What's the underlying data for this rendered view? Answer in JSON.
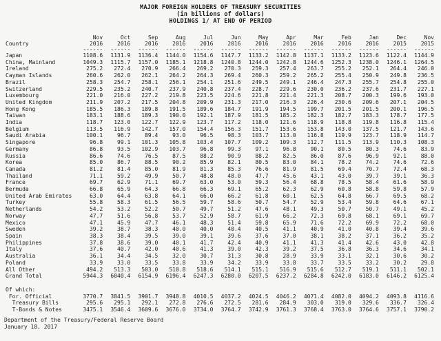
{
  "header": {
    "line1": "MAJOR FOREIGN HOLDERS OF TREASURY SECURITIES",
    "line2": "(in billions of dollars)",
    "line3": "HOLDINGS 1/ AT END OF PERIOD"
  },
  "table": {
    "country_header": "Country",
    "underline": "------",
    "columns": [
      {
        "month": "Nov",
        "year": "2016"
      },
      {
        "month": "Oct",
        "year": "2016"
      },
      {
        "month": "Sep",
        "year": "2016"
      },
      {
        "month": "Aug",
        "year": "2016"
      },
      {
        "month": "Jul",
        "year": "2016"
      },
      {
        "month": "Jun",
        "year": "2016"
      },
      {
        "month": "May",
        "year": "2016"
      },
      {
        "month": "Apr",
        "year": "2016"
      },
      {
        "month": "Mar",
        "year": "2016"
      },
      {
        "month": "Feb",
        "year": "2016"
      },
      {
        "month": "Jan",
        "year": "2016"
      },
      {
        "month": "Dec",
        "year": "2015"
      },
      {
        "month": "Nov",
        "year": "2015"
      }
    ],
    "rows": [
      {
        "name": "Japan",
        "values": [
          "1108.6",
          "1131.9",
          "1136.4",
          "1144.0",
          "1154.6",
          "1147.7",
          "1133.2",
          "1142.8",
          "1137.1",
          "1133.2",
          "1123.6",
          "1122.4",
          "1144.9"
        ]
      },
      {
        "name": "China, Mainland",
        "values": [
          "1049.3",
          "1115.7",
          "1157.0",
          "1185.1",
          "1218.8",
          "1240.8",
          "1244.0",
          "1242.8",
          "1244.6",
          "1252.3",
          "1238.0",
          "1246.1",
          "1264.5"
        ]
      },
      {
        "name": "Ireland",
        "values": [
          "275.2",
          "272.4",
          "270.9",
          "266.4",
          "269.2",
          "270.3",
          "259.3",
          "257.4",
          "263.7",
          "255.2",
          "252.1",
          "264.4",
          "246.0"
        ]
      },
      {
        "name": "Cayman Islands",
        "values": [
          "260.6",
          "262.0",
          "262.1",
          "264.2",
          "264.3",
          "269.4",
          "260.3",
          "259.2",
          "265.2",
          "255.4",
          "250.9",
          "249.8",
          "236.5"
        ]
      },
      {
        "name": "Brazil",
        "values": [
          "258.3",
          "254.7",
          "258.1",
          "256.1",
          "254.1",
          "251.6",
          "249.5",
          "249.1",
          "246.4",
          "247.3",
          "255.7",
          "254.8",
          "255.0"
        ]
      },
      {
        "name": "Switzerland",
        "values": [
          "229.5",
          "235.2",
          "240.7",
          "237.9",
          "240.8",
          "237.4",
          "228.7",
          "229.6",
          "230.0",
          "236.2",
          "237.6",
          "231.7",
          "227.1"
        ]
      },
      {
        "name": "Luxembourg",
        "values": [
          "221.0",
          "216.0",
          "227.2",
          "219.8",
          "223.5",
          "224.6",
          "221.8",
          "221.4",
          "221.3",
          "208.7",
          "200.3",
          "199.6",
          "193.0"
        ]
      },
      {
        "name": "United Kingdom",
        "values": [
          "211.9",
          "207.2",
          "217.5",
          "204.8",
          "209.9",
          "231.3",
          "217.0",
          "216.3",
          "226.4",
          "230.6",
          "209.6",
          "207.1",
          "204.5"
        ]
      },
      {
        "name": "Hong Kong",
        "values": [
          "185.5",
          "186.3",
          "189.8",
          "191.5",
          "189.6",
          "184.7",
          "191.9",
          "194.5",
          "199.7",
          "201.5",
          "201.5",
          "200.1",
          "196.5"
        ]
      },
      {
        "name": "Taiwan",
        "values": [
          "183.1",
          "188.6",
          "189.3",
          "190.0",
          "192.1",
          "187.9",
          "181.5",
          "185.2",
          "182.3",
          "182.7",
          "183.3",
          "178.7",
          "177.5"
        ]
      },
      {
        "name": "India",
        "values": [
          "118.7",
          "123.0",
          "122.7",
          "122.9",
          "123.7",
          "117.2",
          "118.0",
          "121.6",
          "118.9",
          "118.8",
          "119.8",
          "116.8",
          "115.4"
        ]
      },
      {
        "name": "Belgium",
        "values": [
          "113.5",
          "116.9",
          "142.7",
          "157.0",
          "154.4",
          "156.3",
          "151.7",
          "153.6",
          "153.8",
          "143.0",
          "137.5",
          "121.7",
          "143.6"
        ]
      },
      {
        "name": "Saudi Arabia",
        "values": [
          "100.1",
          "96.7",
          "89.4",
          "93.0",
          "96.5",
          "98.3",
          "103.7",
          "113.0",
          "116.8",
          "119.9",
          "123.7",
          "118.9",
          "114.7"
        ]
      },
      {
        "name": "Singapore",
        "values": [
          "96.8",
          "99.1",
          "101.3",
          "105.8",
          "103.4",
          "107.7",
          "109.2",
          "109.3",
          "112.7",
          "111.5",
          "113.9",
          "110.3",
          "108.3"
        ]
      },
      {
        "name": "Germany",
        "values": [
          "86.8",
          "93.5",
          "102.9",
          "103.7",
          "96.8",
          "99.3",
          "97.1",
          "96.8",
          "90.1",
          "80.5",
          "80.3",
          "74.6",
          "83.9"
        ]
      },
      {
        "name": "Russia",
        "values": [
          "86.6",
          "74.6",
          "76.5",
          "87.5",
          "88.2",
          "90.9",
          "88.2",
          "82.5",
          "86.0",
          "87.6",
          "96.9",
          "92.1",
          "88.0"
        ]
      },
      {
        "name": "Korea",
        "values": [
          "85.0",
          "86.7",
          "88.5",
          "90.2",
          "85.9",
          "82.1",
          "80.5",
          "83.0",
          "84.1",
          "78.2",
          "74.2",
          "74.6",
          "72.6"
        ]
      },
      {
        "name": "Canada",
        "values": [
          "81.2",
          "81.4",
          "85.0",
          "81.9",
          "81.3",
          "85.3",
          "76.6",
          "81.9",
          "81.5",
          "69.4",
          "70.7",
          "72.4",
          "68.3"
        ]
      },
      {
        "name": "Thailand",
        "values": [
          "71.1",
          "59.2",
          "49.9",
          "50.7",
          "48.8",
          "48.0",
          "47.7",
          "45.6",
          "43.1",
          "43.0",
          "39.7",
          "39.1",
          "36.3"
        ]
      },
      {
        "name": "France",
        "values": [
          "69.7",
          "62.9",
          "71.1",
          "69.7",
          "63.0",
          "53.0",
          "59.3",
          "56.4",
          "68.8",
          "78.5",
          "58.4",
          "61.6",
          "58.9"
        ]
      },
      {
        "name": "Bermuda",
        "values": [
          "66.8",
          "65.9",
          "64.3",
          "66.8",
          "66.3",
          "69.1",
          "65.2",
          "62.3",
          "62.9",
          "60.8",
          "58.8",
          "59.8",
          "57.9"
        ]
      },
      {
        "name": "United Arab Emirates",
        "values": [
          "63.0",
          "64.4",
          "63.8",
          "64.1",
          "66.0",
          "66.2",
          "61.8",
          "60.1",
          "62.5",
          "64.8",
          "66.7",
          "69.5",
          "68.2"
        ]
      },
      {
        "name": "Turkey",
        "values": [
          "55.8",
          "58.3",
          "61.5",
          "56.5",
          "59.7",
          "58.6",
          "50.7",
          "54.7",
          "52.9",
          "53.4",
          "59.8",
          "64.6",
          "67.1"
        ]
      },
      {
        "name": "Netherlands",
        "values": [
          "54.2",
          "53.2",
          "52.2",
          "50.7",
          "49.7",
          "51.2",
          "47.6",
          "48.1",
          "49.3",
          "50.7",
          "50.7",
          "49.1",
          "45.2"
        ]
      },
      {
        "name": "Norway",
        "values": [
          "47.7",
          "51.6",
          "56.8",
          "53.7",
          "52.9",
          "58.7",
          "61.9",
          "66.2",
          "72.3",
          "69.8",
          "68.1",
          "69.1",
          "69.7"
        ]
      },
      {
        "name": "Mexico",
        "values": [
          "47.1",
          "45.9",
          "47.7",
          "46.1",
          "48.3",
          "51.4",
          "59.8",
          "65.9",
          "71.6",
          "72.2",
          "69.9",
          "72.2",
          "68.0"
        ]
      },
      {
        "name": "Sweden",
        "values": [
          "39.2",
          "38.7",
          "38.3",
          "40.0",
          "40.0",
          "40.4",
          "40.5",
          "41.1",
          "40.9",
          "41.0",
          "40.8",
          "39.4",
          "39.6"
        ]
      },
      {
        "name": "Spain",
        "values": [
          "38.3",
          "38.4",
          "39.5",
          "39.0",
          "39.1",
          "39.6",
          "37.6",
          "37.0",
          "38.1",
          "38.2",
          "37.1",
          "36.2",
          "35.2"
        ]
      },
      {
        "name": "Philippines",
        "values": [
          "37.8",
          "38.6",
          "39.0",
          "40.1",
          "41.7",
          "42.4",
          "40.9",
          "41.1",
          "41.3",
          "41.4",
          "42.6",
          "43.0",
          "42.8"
        ]
      },
      {
        "name": "Italy",
        "values": [
          "37.6",
          "40.7",
          "42.0",
          "40.6",
          "41.3",
          "39.0",
          "42.3",
          "39.2",
          "37.5",
          "36.8",
          "36.3",
          "34.6",
          "34.1"
        ]
      },
      {
        "name": "Australia",
        "values": [
          "36.1",
          "34.4",
          "34.5",
          "32.0",
          "30.7",
          "31.3",
          "30.8",
          "28.9",
          "33.9",
          "33.1",
          "32.1",
          "30.6",
          "30.2"
        ]
      },
      {
        "name": "Poland",
        "values": [
          "33.9",
          "33.0",
          "33.5",
          "33.8",
          "33.9",
          "34.2",
          "33.9",
          "33.8",
          "33.7",
          "33.5",
          "33.2",
          "30.2",
          "29.8"
        ]
      },
      {
        "name": "All Other",
        "values": [
          "494.2",
          "513.3",
          "503.0",
          "510.8",
          "518.6",
          "514.1",
          "515.1",
          "516.9",
          "515.6",
          "512.7",
          "519.1",
          "511.1",
          "502.1"
        ]
      }
    ],
    "grand_total": {
      "name": "Grand Total",
      "values": [
        "5944.3",
        "6040.4",
        "6154.9",
        "6196.4",
        "6247.3",
        "6280.0",
        "6207.5",
        "6237.2",
        "6284.8",
        "6242.0",
        "6183.0",
        "6146.2",
        "6125.4"
      ]
    },
    "of_which_label": "Of which:",
    "of_which_rows": [
      {
        "name": "For. Official",
        "indent": 1,
        "values": [
          "3770.7",
          "3841.5",
          "3901.7",
          "3948.8",
          "4010.5",
          "4037.2",
          "4024.5",
          "4046.2",
          "4071.4",
          "4082.0",
          "4094.2",
          "4093.8",
          "4116.6"
        ]
      },
      {
        "name": "Treasury Bills",
        "indent": 2,
        "values": [
          "295.6",
          "295.1",
          "292.1",
          "272.8",
          "276.6",
          "272.5",
          "281.6",
          "284.9",
          "303.0",
          "319.0",
          "329.6",
          "336.7",
          "326.4"
        ]
      },
      {
        "name": "T-Bonds & Notes",
        "indent": 2,
        "values": [
          "3475.1",
          "3546.4",
          "3609.6",
          "3676.0",
          "3734.0",
          "3764.7",
          "3742.9",
          "3761.3",
          "3768.4",
          "3763.0",
          "3764.6",
          "3757.1",
          "3790.2"
        ]
      }
    ]
  },
  "footer": {
    "source": "Department of the Treasury/Federal Reserve Board",
    "date": "January 18, 2017"
  }
}
